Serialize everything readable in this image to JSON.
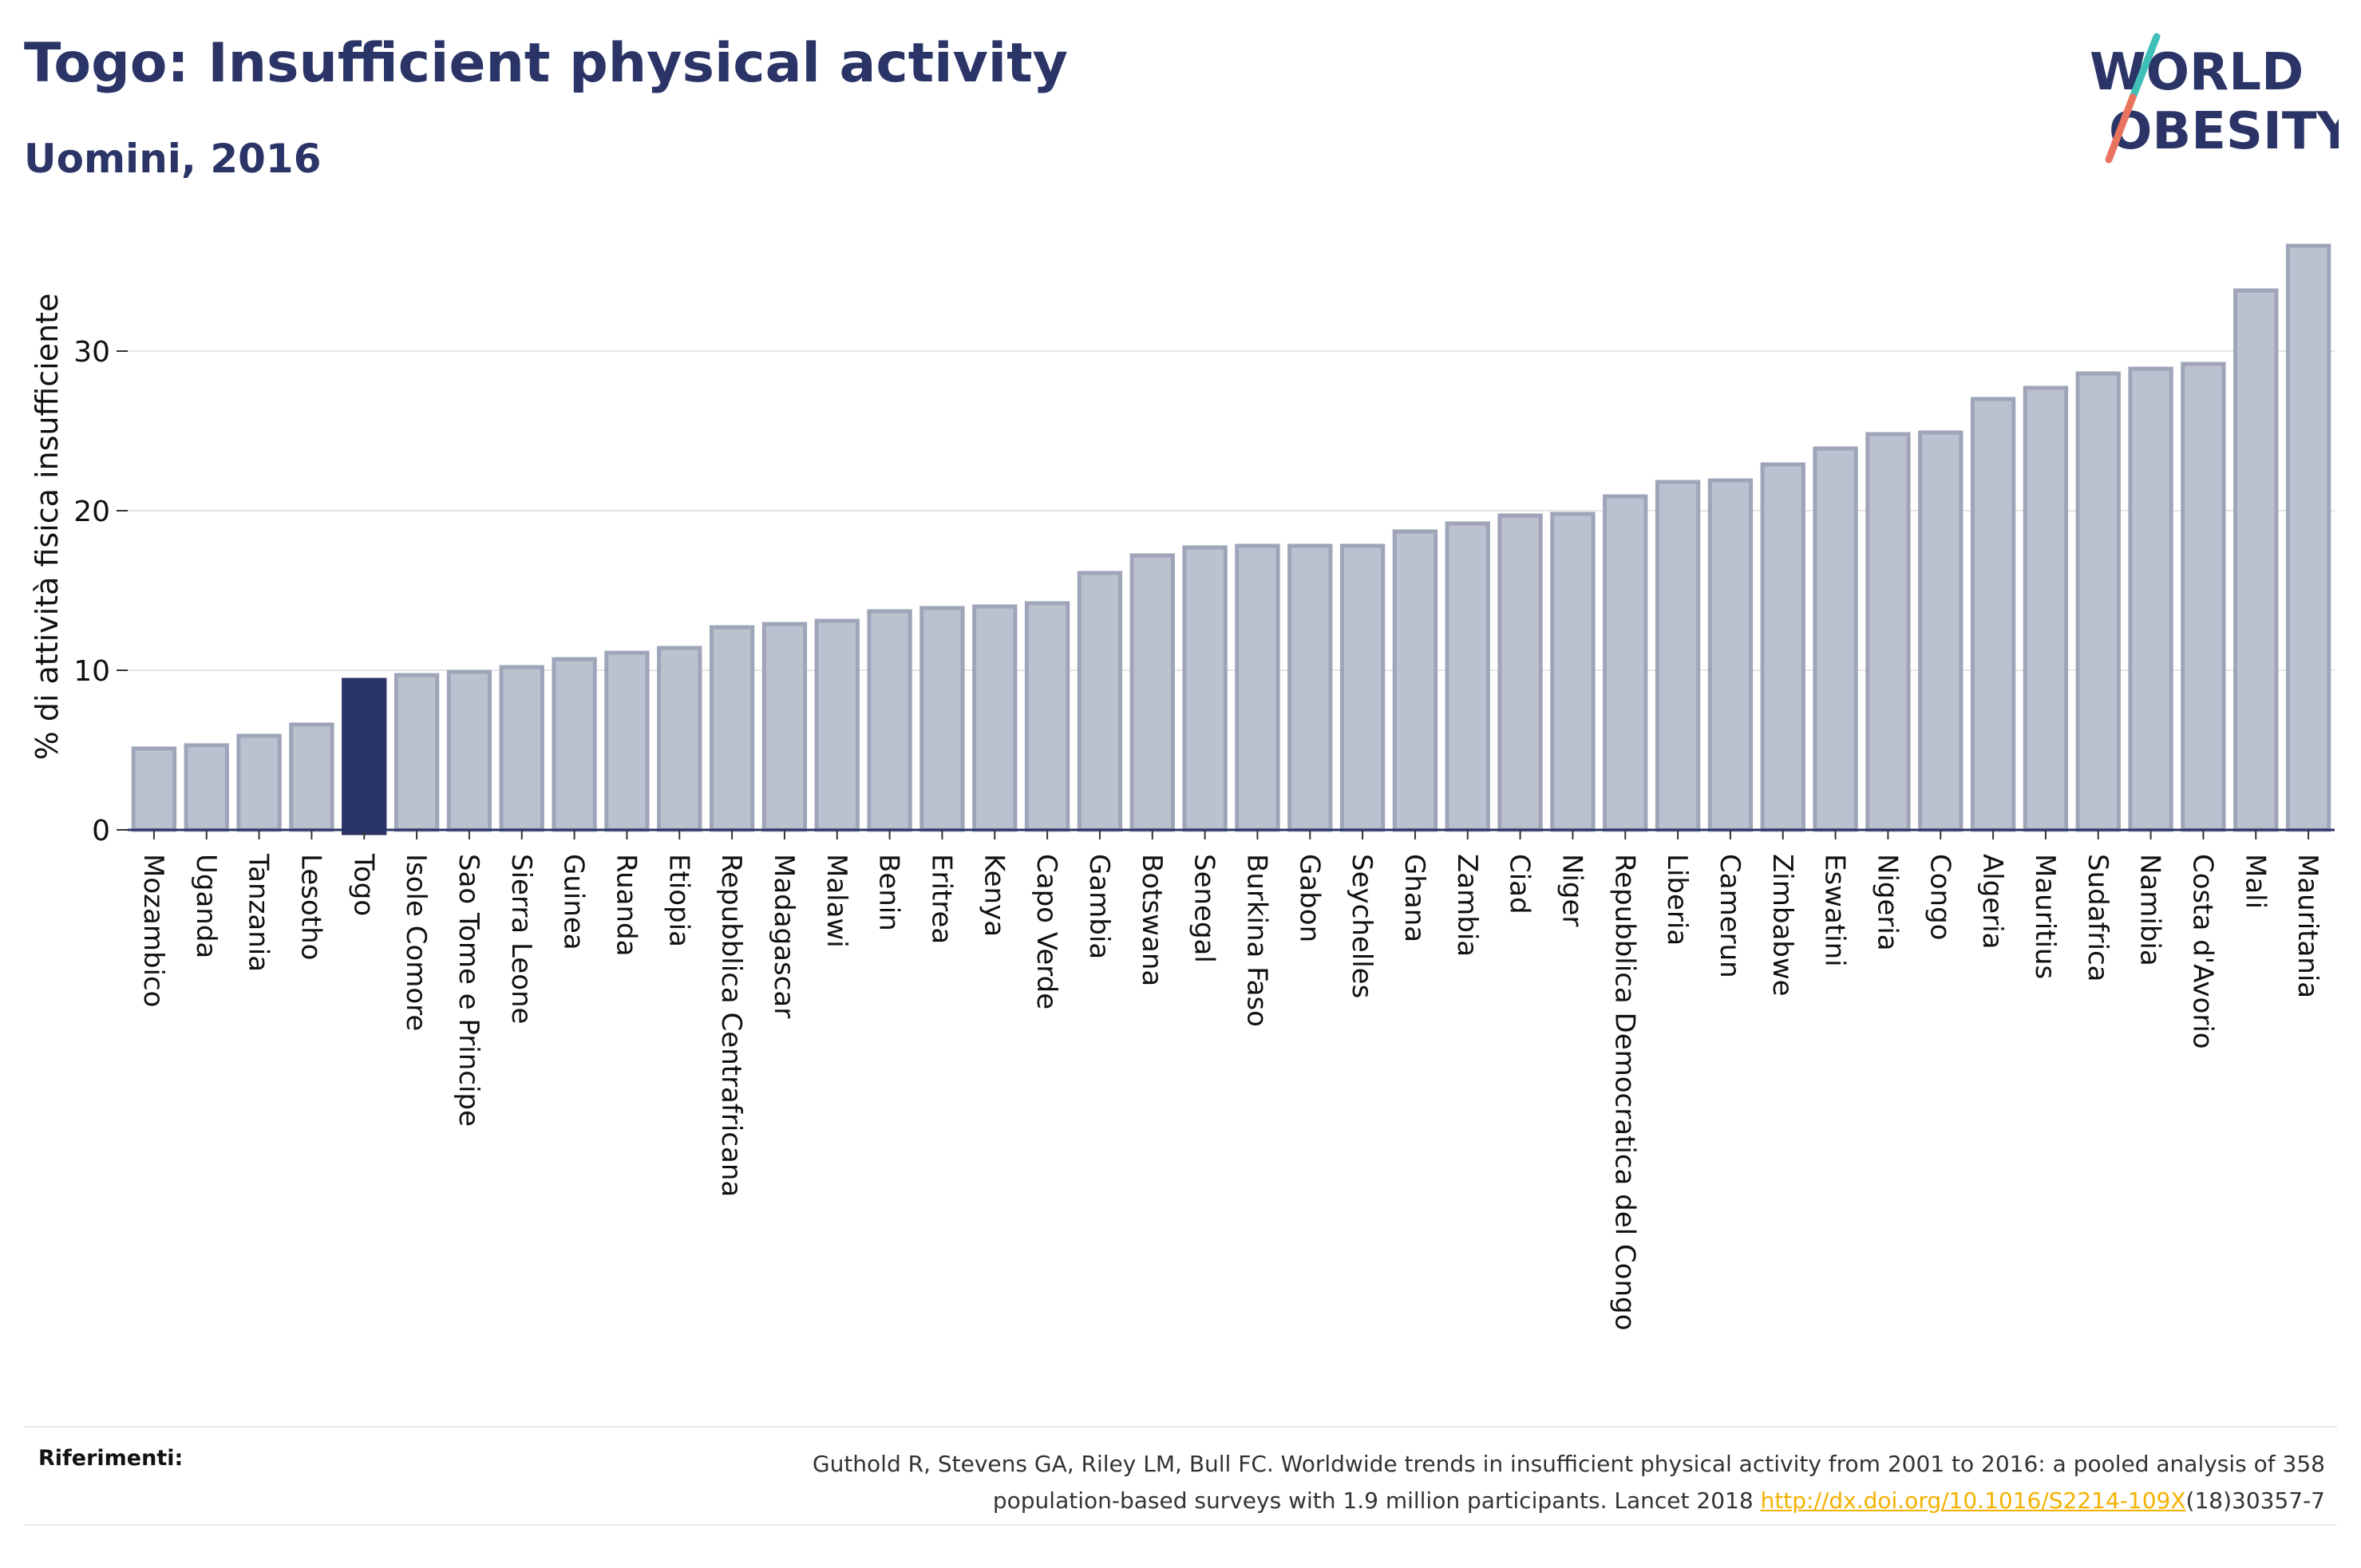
{
  "header": {
    "title": "Togo: Insufficient physical activity",
    "subtitle": "Uomini, 2016"
  },
  "logo": {
    "line1": "WORLD",
    "line2": "OBESITY"
  },
  "colors": {
    "highlight": "#2b3467",
    "bar": "#bcc1cf",
    "bar_border": "#9fa5b9",
    "accent_teal": "#3fbfb8",
    "accent_coral": "#e8735e",
    "link": "#f3b100"
  },
  "chart_data": {
    "type": "bar",
    "title": "Togo: Insufficient physical activity",
    "subtitle": "Uomini, 2016",
    "ylabel": "% di attività fisica insufficiente",
    "xlabel": "",
    "ylim": [
      0,
      38
    ],
    "yticks": [
      0,
      10,
      20,
      30
    ],
    "grid": true,
    "highlight": "Togo",
    "categories": [
      "Mozambico",
      "Uganda",
      "Tanzania",
      "Lesotho",
      "Togo",
      "Isole Comore",
      "Sao Tome e Principe",
      "Sierra Leone",
      "Guinea",
      "Ruanda",
      "Etiopia",
      "Repubblica Centrafricana",
      "Madagascar",
      "Malawi",
      "Benin",
      "Eritrea",
      "Kenya",
      "Capo Verde",
      "Gambia",
      "Botswana",
      "Senegal",
      "Burkina Faso",
      "Gabon",
      "Seychelles",
      "Ghana",
      "Zambia",
      "Ciad",
      "Niger",
      "Repubblica Democratica del Congo",
      "Liberia",
      "Camerun",
      "Zimbabwe",
      "Eswatini",
      "Nigeria",
      "Congo",
      "Algeria",
      "Mauritius",
      "Sudafrica",
      "Namibia",
      "Costa d'Avorio",
      "Mali",
      "Mauritania"
    ],
    "values": [
      5.1,
      5.3,
      5.9,
      6.6,
      9.4,
      9.7,
      9.9,
      10.2,
      10.7,
      11.1,
      11.4,
      12.7,
      12.9,
      13.1,
      13.7,
      13.9,
      14.0,
      14.2,
      16.1,
      17.2,
      17.7,
      17.8,
      17.8,
      17.8,
      18.7,
      19.2,
      19.7,
      19.8,
      20.9,
      21.8,
      21.9,
      22.9,
      23.9,
      24.8,
      24.9,
      27.0,
      27.7,
      28.6,
      28.9,
      29.2,
      33.8,
      36.6
    ]
  },
  "references": {
    "label": "Riferimenti:",
    "text_line1": "Guthold R, Stevens GA, Riley LM, Bull FC. Worldwide trends in insufficient physical activity from 2001 to 2016: a pooled analysis of 358",
    "text_line2_prefix": "population-based surveys with 1.9 million participants. Lancet 2018 ",
    "link": "http://dx.doi.org/10.1016/S2214-109X",
    "text_line2_suffix": "(18)30357-7"
  }
}
